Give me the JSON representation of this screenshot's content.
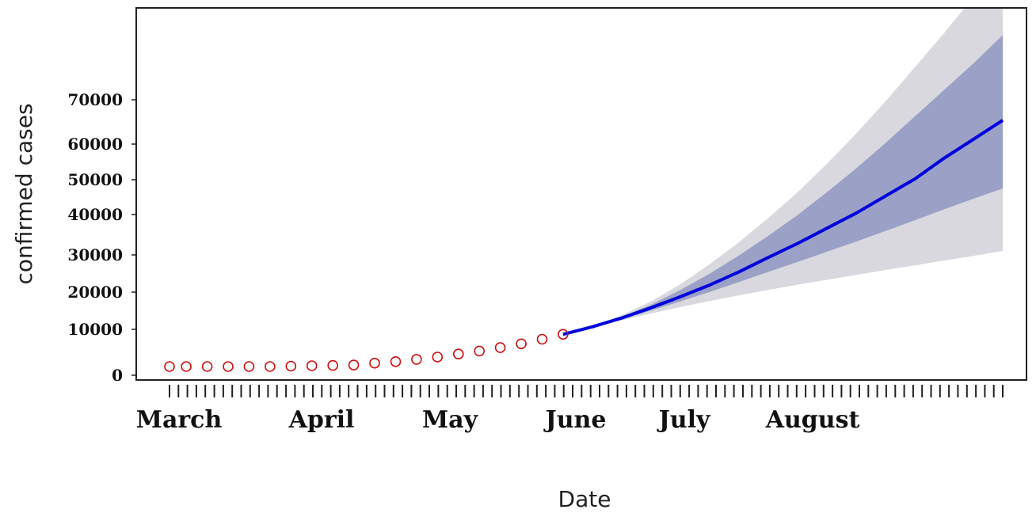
{
  "chart_data": {
    "type": "line",
    "xlabel": "Date",
    "ylabel": "confirmed cases",
    "x_tick_labels": [
      "March",
      "April",
      "May",
      "June",
      "July",
      "August"
    ],
    "y_tick_labels": [
      "0",
      "10000",
      "20000",
      "30000",
      "40000",
      "50000",
      "60000",
      "70000"
    ],
    "ylim": [
      0,
      80000
    ],
    "grid": false,
    "colors": {
      "observed": "#cc1111",
      "forecast": "#0000dd",
      "band_inner": "#9aa0c6",
      "band_outer": "#d8d8de"
    },
    "series": [
      {
        "kind": "observed",
        "marker": "circle",
        "x": [
          "2020-03-01",
          "2020-03-05",
          "2020-03-10",
          "2020-03-15",
          "2020-03-20",
          "2020-03-25",
          "2020-03-30",
          "2020-04-04",
          "2020-04-09",
          "2020-04-14",
          "2020-04-19",
          "2020-04-24",
          "2020-04-29",
          "2020-05-04",
          "2020-05-09",
          "2020-05-14",
          "2020-05-19",
          "2020-05-24",
          "2020-05-29",
          "2020-06-03"
        ],
        "y": [
          0,
          0,
          0,
          0,
          0,
          0,
          100,
          200,
          300,
          400,
          900,
          1300,
          1900,
          2500,
          3300,
          4100,
          5000,
          6000,
          7200,
          8500
        ]
      },
      {
        "kind": "forecast",
        "x": [
          "2020-06-03",
          "2020-06-10",
          "2020-06-17",
          "2020-06-24",
          "2020-07-01",
          "2020-07-08",
          "2020-07-15",
          "2020-07-22",
          "2020-07-29",
          "2020-08-05",
          "2020-08-12",
          "2020-08-19",
          "2020-08-26",
          "2020-09-02",
          "2020-09-09",
          "2020-09-16"
        ],
        "y": [
          8500,
          10500,
          12800,
          15500,
          18400,
          21500,
          25000,
          28800,
          32500,
          36500,
          40500,
          45000,
          49500,
          55000,
          60000,
          65000
        ],
        "ci_inner_lower": [
          8500,
          10400,
          12500,
          14800,
          17200,
          19700,
          22300,
          25000,
          27600,
          30300,
          33000,
          35800,
          38600,
          41500,
          44300,
          47000
        ],
        "ci_inner_upper": [
          8500,
          10600,
          13100,
          16300,
          20200,
          24500,
          29300,
          34500,
          40000,
          46000,
          52300,
          59000,
          66000,
          73000,
          80000,
          87500
        ],
        "ci_outer_lower": [
          8500,
          10300,
          12200,
          14000,
          15700,
          17300,
          18800,
          20200,
          21600,
          22900,
          24200,
          25500,
          26700,
          28000,
          29200,
          30500
        ],
        "ci_outer_upper": [
          8500,
          10700,
          13500,
          17200,
          21700,
          27000,
          32800,
          39200,
          46000,
          53500,
          61500,
          70000,
          79000,
          88000,
          97500,
          107000
        ]
      }
    ]
  }
}
